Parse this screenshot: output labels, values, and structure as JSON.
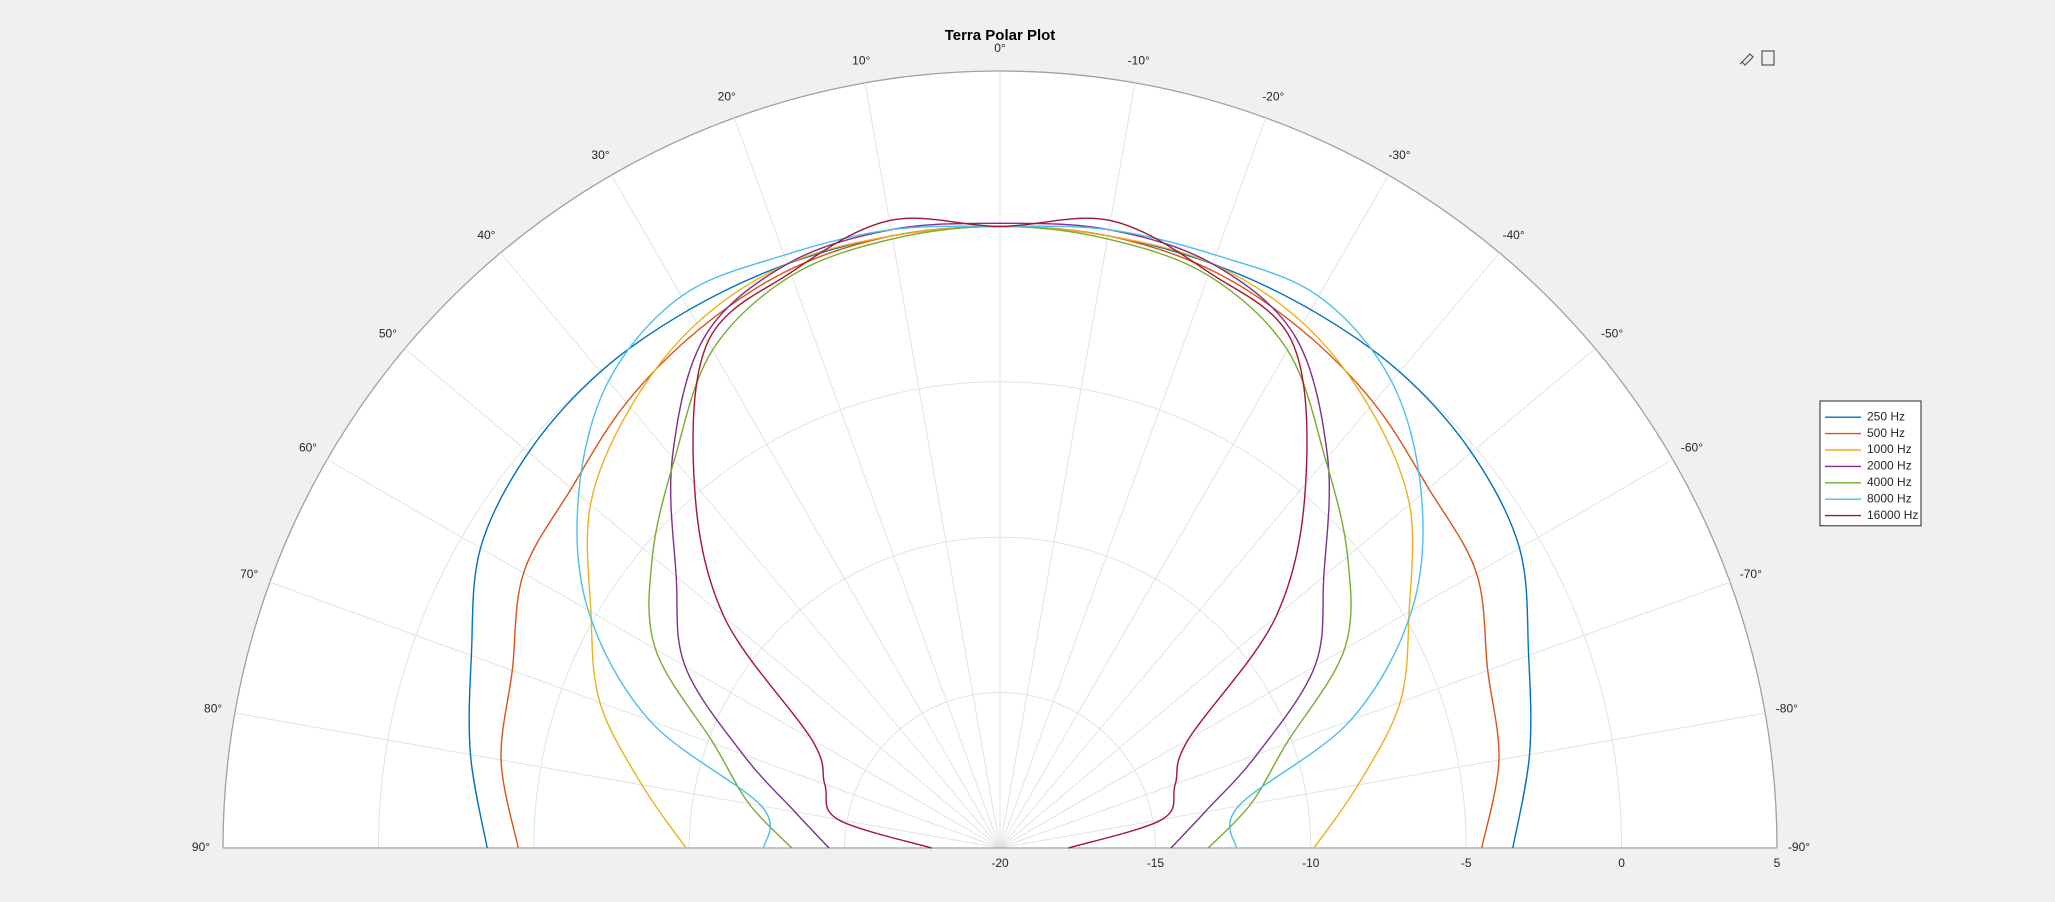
{
  "chart_data": {
    "type": "polar",
    "title": "Terra Polar Plot",
    "theta": [
      -90,
      -80,
      -70,
      -60,
      -50,
      -40,
      -30,
      -20,
      -10,
      0,
      10,
      20,
      30,
      40,
      50,
      60,
      70,
      80,
      90
    ],
    "thetalim": [
      -90,
      90
    ],
    "thetaticks": [
      {
        "value": -90,
        "label": "-90°"
      },
      {
        "value": -80,
        "label": "-80°"
      },
      {
        "value": -70,
        "label": "-70°"
      },
      {
        "value": -60,
        "label": "-60°"
      },
      {
        "value": -50,
        "label": "-50°"
      },
      {
        "value": -40,
        "label": "-40°"
      },
      {
        "value": -30,
        "label": "-30°"
      },
      {
        "value": -20,
        "label": "-20°"
      },
      {
        "value": -10,
        "label": "-10°"
      },
      {
        "value": 0,
        "label": "0°"
      },
      {
        "value": 10,
        "label": "10°"
      },
      {
        "value": 20,
        "label": "20°"
      },
      {
        "value": 30,
        "label": "30°"
      },
      {
        "value": 40,
        "label": "40°"
      },
      {
        "value": 50,
        "label": "50°"
      },
      {
        "value": 60,
        "label": "60°"
      },
      {
        "value": 70,
        "label": "70°"
      },
      {
        "value": 80,
        "label": "80°"
      },
      {
        "value": 90,
        "label": "90°"
      }
    ],
    "rlim": [
      -20,
      5
    ],
    "rticks": [
      -20,
      -15,
      -10,
      -5,
      0,
      5
    ],
    "grid": true,
    "legend": "east",
    "series": [
      {
        "name": "250 Hz",
        "color": "#0072BD",
        "values": [
          -3.5,
          -2.7,
          -1.9,
          -0.7,
          -0.2,
          0,
          0,
          0,
          0,
          0,
          0,
          0,
          0,
          0,
          -0.2,
          -0.7,
          -1.9,
          -2.7,
          -3.5
        ]
      },
      {
        "name": "500 Hz",
        "color": "#D95319",
        "values": [
          -4.5,
          -3.7,
          -3.3,
          -2.3,
          -2.0,
          -1.3,
          -0.7,
          -0.2,
          0,
          0,
          0,
          -0.2,
          -0.7,
          -1.3,
          -2.0,
          -2.3,
          -3.3,
          -3.7,
          -4.5
        ]
      },
      {
        "name": "1000 Hz",
        "color": "#EDB120",
        "values": [
          -9.9,
          -8.3,
          -6.3,
          -4.8,
          -2.8,
          -1.5,
          -0.5,
          0,
          0,
          0,
          0,
          0,
          -0.5,
          -1.5,
          -2.8,
          -4.8,
          -6.3,
          -8.3,
          -9.9
        ]
      },
      {
        "name": "2000 Hz",
        "color": "#7E2F8E",
        "values": [
          -14.5,
          -13.3,
          -11.2,
          -8.3,
          -6.4,
          -3.6,
          -1.0,
          0,
          0.2,
          0.1,
          0.2,
          0,
          -1.0,
          -3.6,
          -6.4,
          -8.3,
          -11.2,
          -13.3,
          -14.5
        ]
      },
      {
        "name": "4000 Hz",
        "color": "#77AC30",
        "values": [
          -13.3,
          -11.8,
          -10.2,
          -7.2,
          -5.4,
          -3.7,
          -1.5,
          -0.4,
          -0.1,
          0,
          -0.1,
          -0.4,
          -1.5,
          -3.7,
          -5.4,
          -7.2,
          -10.2,
          -11.8,
          -13.3
        ]
      },
      {
        "name": "8000 Hz",
        "color": "#4DBEEE",
        "values": [
          -12.4,
          -12.2,
          -8.0,
          -4.7,
          -2.3,
          -0.4,
          0.5,
          0.3,
          0.2,
          0,
          0.2,
          0.3,
          0.5,
          -0.4,
          -2.3,
          -4.7,
          -8.0,
          -12.2,
          -12.4
        ]
      },
      {
        "name": "16000 Hz",
        "color": "#A2142F",
        "values": [
          -17.8,
          -14.7,
          -14.0,
          -13.0,
          -8.4,
          -4.7,
          -1.2,
          -0.3,
          0.5,
          0,
          0.5,
          -0.3,
          -1.2,
          -4.7,
          -8.4,
          -13.0,
          -14.0,
          -14.7,
          -17.8
        ]
      }
    ]
  }
}
